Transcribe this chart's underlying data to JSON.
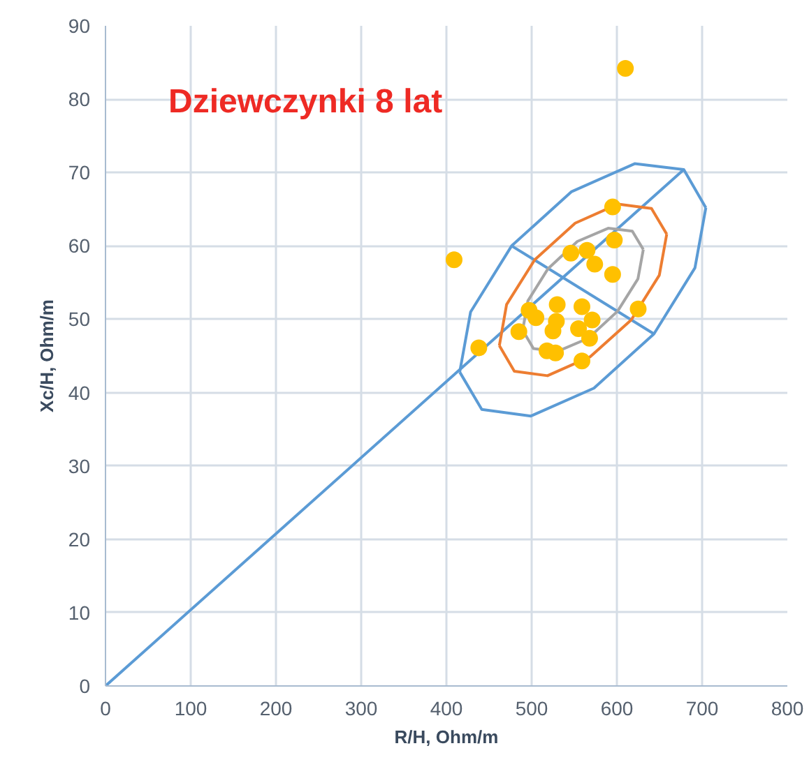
{
  "chart_data": {
    "type": "scatter",
    "annotations": [
      "Dziewczynki 8 lat"
    ],
    "xlabel": "R/H, Ohm/m",
    "ylabel": "Xc/H, Ohm/m",
    "xlim": [
      0,
      800
    ],
    "ylim": [
      0,
      90
    ],
    "xticks": [
      0,
      100,
      200,
      300,
      400,
      500,
      600,
      700,
      800
    ],
    "yticks": [
      0,
      10,
      20,
      30,
      40,
      50,
      60,
      70,
      80,
      90
    ],
    "grid": true,
    "series": [
      {
        "type": "line",
        "marker": "none",
        "color": "#5b9bd5",
        "x": [
          0,
          678.5
        ],
        "values": [
          0,
          70.4
        ]
      },
      {
        "type": "line",
        "marker": "none",
        "color": "#5b9bd5",
        "x": [
          476.5,
          643.5
        ],
        "values": [
          60.0,
          48.0
        ]
      },
      {
        "type": "line",
        "marker": "none",
        "color": "#5b9bd5",
        "x": [
          415.6,
          428.4,
          476.5,
          546.9,
          620.9,
          678.5,
          704.4
        ],
        "values": [
          42.8,
          51.0,
          60.0,
          67.4,
          71.2,
          70.4,
          65.2
        ]
      },
      {
        "type": "line",
        "marker": "none",
        "color": "#5b9bd5",
        "x": [
          415.6,
          441.5,
          499.1,
          573.1,
          643.5,
          691.6,
          704.4
        ],
        "values": [
          42.8,
          37.7,
          36.8,
          40.6,
          48.0,
          57.0,
          65.2
        ]
      },
      {
        "type": "line",
        "marker": "none",
        "color": "#ed7d31",
        "x": [
          462.1,
          470.6,
          503.6,
          551.1,
          601.4,
          640.6,
          658.5
        ],
        "values": [
          46.4,
          52.0,
          58.1,
          63.1,
          65.7,
          65.1,
          61.6
        ]
      },
      {
        "type": "line",
        "marker": "none",
        "color": "#ed7d31",
        "x": [
          462.1,
          479.7,
          518.6,
          568.9,
          616.8,
          649.8,
          658.5
        ],
        "values": [
          46.4,
          42.9,
          42.3,
          44.9,
          49.9,
          56.0,
          61.6
        ]
      },
      {
        "type": "line",
        "marker": "none",
        "color": "#a5a5a5",
        "x": [
          489.5,
          495.6,
          519.3,
          553.6,
          589.8,
          618.1,
          631.0
        ],
        "values": [
          48.5,
          52.5,
          56.9,
          60.6,
          62.4,
          62.0,
          59.5
        ]
      },
      {
        "type": "line",
        "marker": "none",
        "color": "#a5a5a5",
        "x": [
          489.5,
          502.1,
          530.2,
          566.4,
          600.9,
          624.7,
          631.0
        ],
        "values": [
          48.5,
          46.0,
          45.6,
          47.4,
          51.1,
          55.5,
          59.5
        ]
      },
      {
        "marker": "circle",
        "color": "#ffc000",
        "x": [
          610,
          409,
          438,
          485,
          497,
          505,
          530,
          529,
          525,
          518,
          528,
          546,
          565,
          574,
          595,
          597,
          595,
          559,
          571,
          555,
          568,
          559,
          625
        ],
        "values": [
          84.2,
          58.1,
          46.1,
          48.3,
          51.2,
          50.2,
          52.0,
          49.7,
          48.4,
          45.7,
          45.4,
          59.0,
          59.4,
          57.5,
          65.3,
          60.8,
          56.1,
          51.7,
          49.9,
          48.7,
          47.4,
          44.3,
          51.4
        ]
      }
    ]
  }
}
